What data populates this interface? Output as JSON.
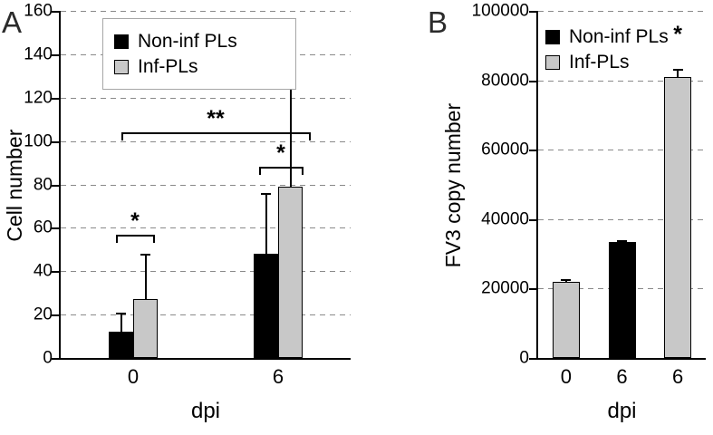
{
  "figure": {
    "background": "#ffffff",
    "bar_colors": {
      "non_infected": "#000000",
      "infected": "#c8c8c8"
    }
  },
  "chart_data": [
    {
      "type": "bar",
      "panel_label": "A",
      "title": "",
      "xlabel": "dpi",
      "ylabel": "Cell number",
      "ylim": [
        0,
        160
      ],
      "yticks": [
        0,
        20,
        40,
        60,
        80,
        100,
        120,
        140,
        160
      ],
      "grid": "dashed-horizontal",
      "legend_position": "top-left-boxed",
      "categories": [
        "0",
        "6"
      ],
      "series": [
        {
          "name": "Non-inf PLs",
          "color": "#000000",
          "values": [
            12,
            48
          ],
          "errors": [
            9,
            28
          ]
        },
        {
          "name": "Inf-PLs",
          "color": "#c8c8c8",
          "values": [
            27,
            79
          ],
          "errors": [
            21,
            64
          ]
        }
      ],
      "legend_items": [
        {
          "label": "Non-inf PLs",
          "color": "#000000"
        },
        {
          "label": "Inf-PLs",
          "color": "#c8c8c8"
        }
      ],
      "annotations": [
        {
          "kind": "bracket",
          "text": "*",
          "bars": [
            0,
            1
          ],
          "y": 57,
          "pad": [
            -6,
            10
          ]
        },
        {
          "kind": "bracket",
          "text": "*",
          "bars": [
            2,
            3
          ],
          "y": 88,
          "pad": [
            -8,
            14
          ]
        },
        {
          "kind": "bracket",
          "text": "**",
          "bars": [
            0,
            3
          ],
          "y": 104,
          "pad": [
            0,
            22
          ]
        }
      ]
    },
    {
      "type": "bar",
      "panel_label": "B",
      "title": "",
      "xlabel": "dpi",
      "ylabel": "FV3 copy number",
      "ylim": [
        0,
        100000
      ],
      "yticks": [
        0,
        20000,
        40000,
        60000,
        80000,
        100000
      ],
      "grid": "dashed-horizontal",
      "legend_position": "top-left",
      "categories": [
        "0",
        "6",
        "6"
      ],
      "bars": [
        {
          "series": "Inf-PLs",
          "color": "#c8c8c8",
          "value": 22000,
          "error": 800
        },
        {
          "series": "Non-inf PLs",
          "color": "#000000",
          "value": 33500,
          "error": 500
        },
        {
          "series": "Inf-PLs",
          "color": "#c8c8c8",
          "value": 81000,
          "error": 2300
        }
      ],
      "legend_items": [
        {
          "label": "Non-inf PLs",
          "color": "#000000"
        },
        {
          "label": "Inf-PLs",
          "color": "#c8c8c8"
        }
      ],
      "annotations": [
        {
          "kind": "star",
          "text": "*",
          "bar": 2,
          "y": 93000
        }
      ]
    }
  ]
}
